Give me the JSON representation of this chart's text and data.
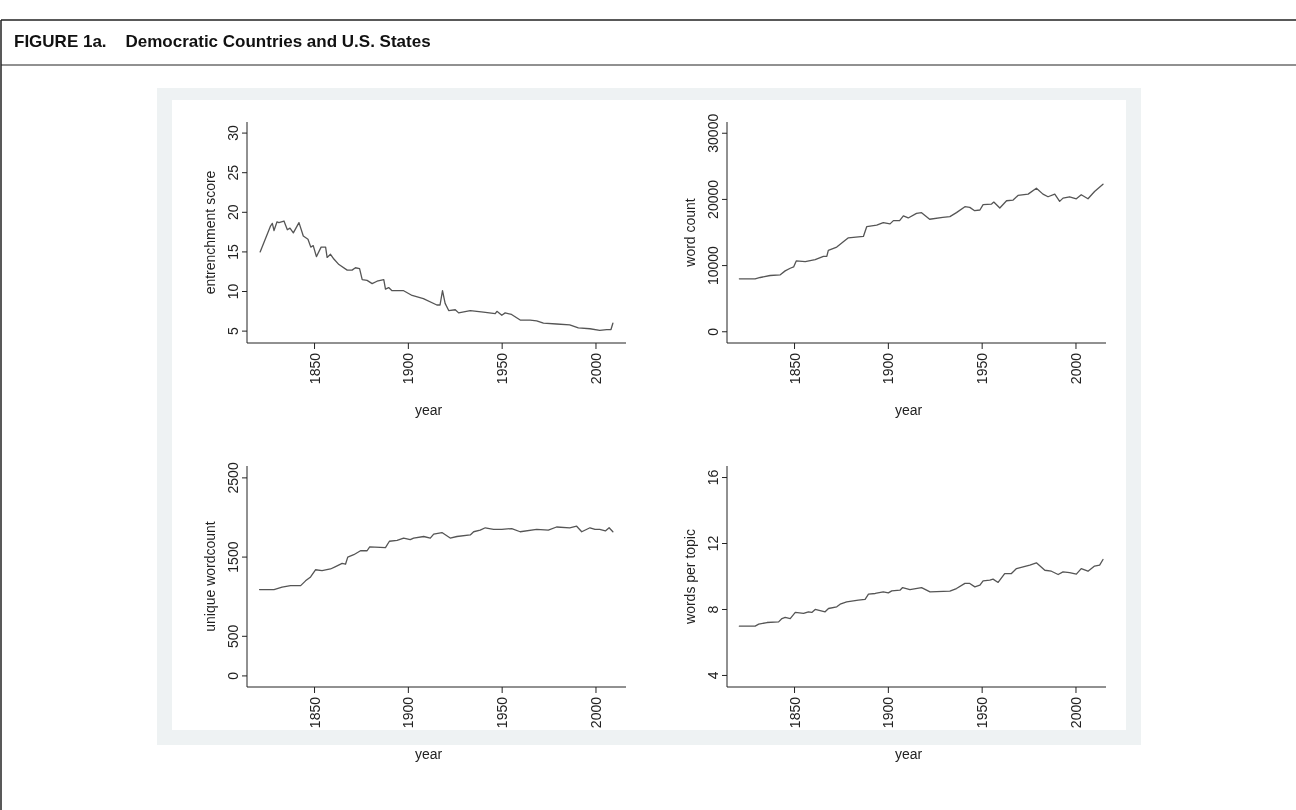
{
  "chart_data": [
    {
      "type": "line",
      "title": "FIGURE 1a.    Democratic Countries and U.S. States",
      "xlabel": "year",
      "ylabel": "entrenchment score",
      "xlim": [
        1814,
        2016
      ],
      "xticks": [
        1850,
        1900,
        1950,
        2000
      ],
      "ylim": [
        3.5,
        31.4
      ],
      "yticks": [
        5,
        10,
        15,
        20,
        25,
        30
      ],
      "series": [
        {
          "color": "#555555",
          "x": [
            1821,
            1826.6,
            1827.5,
            1828.4,
            1830,
            1831,
            1833.7,
            1835.5,
            1836.9,
            1838.7,
            1841.7,
            1844,
            1846.5,
            1848,
            1849.3,
            1851,
            1853.5,
            1855.9,
            1856.7,
            1858.5,
            1860.3,
            1863,
            1867.4,
            1870,
            1871.8,
            1874,
            1875.4,
            1878,
            1880.7,
            1883.3,
            1886.9,
            1887.8,
            1889.5,
            1891.3,
            1897.5,
            1902,
            1908,
            1915.2,
            1916.9,
            1918.2,
            1919.6,
            1921.5,
            1925,
            1926.8,
            1933,
            1940,
            1946.3,
            1947.2,
            1949.8,
            1951.6,
            1955,
            1959.6,
            1964.9,
            1968.4,
            1972,
            1979,
            1986,
            1990.6,
            1996.8,
            2002,
            2005.7,
            2008,
            2009
          ],
          "values": [
            15,
            18.3,
            18.6,
            17.7,
            18.8,
            18.7,
            18.9,
            17.8,
            18,
            17.4,
            18.7,
            17,
            16.6,
            15.6,
            15.8,
            14.4,
            15.6,
            15.6,
            14.3,
            14.7,
            14.1,
            13.4,
            12.7,
            12.7,
            13,
            12.9,
            11.5,
            11.4,
            11,
            11.3,
            11.5,
            10.3,
            10.5,
            10.1,
            10.1,
            9.5,
            9.1,
            8.3,
            8.3,
            10.1,
            8.5,
            7.6,
            7.7,
            7.3,
            7.6,
            7.4,
            7.2,
            7.5,
            7,
            7.3,
            7.1,
            6.4,
            6.4,
            6.3,
            6,
            5.9,
            5.8,
            5.4,
            5.3,
            5.1,
            5.2,
            5.2,
            6
          ]
        }
      ]
    },
    {
      "type": "line",
      "xlabel": "year",
      "ylabel": "word count",
      "xlim": [
        1814,
        2016
      ],
      "xticks": [
        1850,
        1900,
        1950,
        2000
      ],
      "ylim": [
        -1700,
        31700
      ],
      "yticks": [
        0,
        10000,
        20000,
        30000
      ],
      "series": [
        {
          "color": "#555555",
          "x": [
            1820.6,
            1829,
            1831.7,
            1837,
            1842.4,
            1845,
            1847.7,
            1849.5,
            1850.9,
            1855.7,
            1861,
            1865.4,
            1867.2,
            1868,
            1872.5,
            1876,
            1878.7,
            1886.7,
            1888.5,
            1893.8,
            1897.3,
            1900.9,
            1902.7,
            1906,
            1908,
            1910.6,
            1915,
            1917.7,
            1922,
            1929,
            1932.8,
            1936.3,
            1940.8,
            1943.4,
            1946,
            1948.8,
            1950.5,
            1955,
            1956.2,
            1959.4,
            1963,
            1966.5,
            1969.1,
            1974.5,
            1978.9,
            1982.4,
            1985.1,
            1988.7,
            1991.3,
            1993.1,
            1996.6,
            2000.2,
            2002.8,
            2006.4,
            2009.9,
            2014.4
          ],
          "values": [
            8000,
            8000,
            8200,
            8500,
            8600,
            9200,
            9600,
            9800,
            10700,
            10600,
            10900,
            11400,
            11400,
            12300,
            12800,
            13600,
            14200,
            14400,
            15900,
            16100,
            16500,
            16300,
            16800,
            16800,
            17500,
            17200,
            17900,
            18000,
            17000,
            17300,
            17400,
            18000,
            18900,
            18800,
            18300,
            18400,
            19200,
            19300,
            19600,
            18700,
            19800,
            19900,
            20600,
            20800,
            21700,
            20800,
            20400,
            20800,
            19700,
            20200,
            20400,
            20100,
            20700,
            20100,
            21200,
            22300
          ]
        }
      ]
    },
    {
      "type": "line",
      "xlabel": "year",
      "ylabel": "unique wordcount",
      "xlim": [
        1814,
        2016
      ],
      "xticks": [
        1850,
        1900,
        1950,
        2000
      ],
      "ylim": [
        -140,
        2650
      ],
      "yticks": [
        0,
        500,
        1500,
        2500
      ],
      "series": [
        {
          "color": "#555555",
          "x": [
            1820.7,
            1828.4,
            1832.7,
            1837.2,
            1842.6,
            1845.2,
            1847.9,
            1850.5,
            1854,
            1858.5,
            1861.2,
            1864.7,
            1866.5,
            1867.7,
            1870.9,
            1874.5,
            1878,
            1879.4,
            1887.8,
            1889.9,
            1894,
            1897.5,
            1901,
            1902.8,
            1908.2,
            1911.7,
            1913.5,
            1917.9,
            1922.3,
            1925.9,
            1933,
            1934.8,
            1938.3,
            1941,
            1945.4,
            1949.8,
            1955.1,
            1959.6,
            1968.4,
            1974.6,
            1979,
            1986,
            1989.7,
            1992.4,
            1996.8,
            1999.5,
            2002,
            2005,
            2007,
            2009
          ],
          "values": [
            1090,
            1090,
            1120,
            1140,
            1140,
            1200,
            1250,
            1340,
            1330,
            1350,
            1380,
            1420,
            1410,
            1500,
            1530,
            1580,
            1580,
            1630,
            1620,
            1700,
            1710,
            1740,
            1720,
            1740,
            1760,
            1740,
            1790,
            1810,
            1740,
            1760,
            1780,
            1820,
            1840,
            1870,
            1850,
            1850,
            1860,
            1820,
            1850,
            1840,
            1880,
            1870,
            1890,
            1820,
            1870,
            1850,
            1850,
            1830,
            1870,
            1820
          ]
        }
      ]
    },
    {
      "type": "line",
      "xlabel": "year",
      "ylabel": "words per topic",
      "xlim": [
        1814,
        2016
      ],
      "xticks": [
        1850,
        1900,
        1950,
        2000
      ],
      "ylim": [
        3.3,
        16.7
      ],
      "yticks": [
        4,
        8,
        12,
        16
      ],
      "series": [
        {
          "color": "#555555",
          "x": [
            1820.6,
            1829,
            1830.9,
            1835.3,
            1841.5,
            1843.3,
            1845,
            1847.7,
            1850.4,
            1854.8,
            1857.4,
            1859.2,
            1861,
            1866.3,
            1868.1,
            1872.5,
            1874.3,
            1877.8,
            1884,
            1887.6,
            1889.4,
            1893,
            1897.3,
            1900,
            1901.8,
            1906.2,
            1907.6,
            1911.5,
            1917.7,
            1922.2,
            1932.8,
            1936.3,
            1940.8,
            1943.4,
            1946.1,
            1948.8,
            1950.5,
            1954.1,
            1955.8,
            1958.5,
            1962,
            1965.6,
            1968.3,
            1975.4,
            1978.9,
            1983.4,
            1986.9,
            1990.5,
            1993.1,
            1996.6,
            2000.2,
            2002.8,
            2006.4,
            2009.9,
            2012.6,
            2014.4
          ],
          "values": [
            6.99,
            6.99,
            7.11,
            7.21,
            7.25,
            7.45,
            7.52,
            7.45,
            7.82,
            7.76,
            7.86,
            7.82,
            8,
            7.86,
            8.06,
            8.16,
            8.32,
            8.46,
            8.57,
            8.61,
            8.93,
            8.97,
            9.07,
            9.01,
            9.13,
            9.17,
            9.33,
            9.21,
            9.33,
            9.07,
            9.11,
            9.27,
            9.58,
            9.58,
            9.37,
            9.47,
            9.74,
            9.78,
            9.84,
            9.64,
            10.18,
            10.18,
            10.48,
            10.69,
            10.83,
            10.38,
            10.32,
            10.12,
            10.28,
            10.24,
            10.14,
            10.48,
            10.32,
            10.63,
            10.69,
            11.03
          ]
        }
      ]
    }
  ]
}
